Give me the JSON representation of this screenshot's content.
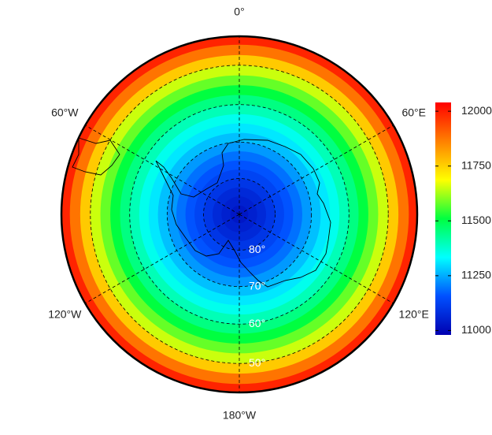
{
  "chart_data": {
    "type": "polar-map",
    "meridians": [
      {
        "value": 0,
        "label": "0°"
      },
      {
        "value": 60,
        "label": "60°E"
      },
      {
        "value": 120,
        "label": "120°E"
      },
      {
        "value": 180,
        "label": "180°W"
      },
      {
        "value": -120,
        "label": "120°W"
      },
      {
        "value": -60,
        "label": "60°W"
      }
    ],
    "parallels": [
      {
        "value": -80,
        "label": "80°"
      },
      {
        "value": -70,
        "label": "70°"
      },
      {
        "value": -60,
        "label": "60°"
      },
      {
        "value": -50,
        "label": "50°"
      }
    ],
    "boundary_lat": -43,
    "field": {
      "latitudes": [
        -43,
        -45,
        -47.5,
        -50,
        -52.5,
        -55,
        -57.5,
        -60,
        -62.5,
        -65,
        -67.5,
        -70,
        -72.5,
        -75,
        -77.5,
        -80,
        -82.5,
        -85,
        -87.5
      ],
      "values": [
        11990,
        11880,
        11760,
        11650,
        11580,
        11510,
        11450,
        11400,
        11350,
        11310,
        11270,
        11230,
        11190,
        11160,
        11130,
        11100,
        11070,
        11050,
        11030
      ]
    },
    "colormap": [
      "#0000b0",
      "#0050ff",
      "#00ffff",
      "#00ff40",
      "#ffff00",
      "#ff8000",
      "#ff0000"
    ],
    "clim": [
      10980,
      12040
    ],
    "colorbar_ticks": [
      11000,
      11250,
      11500,
      11750,
      12000
    ]
  }
}
